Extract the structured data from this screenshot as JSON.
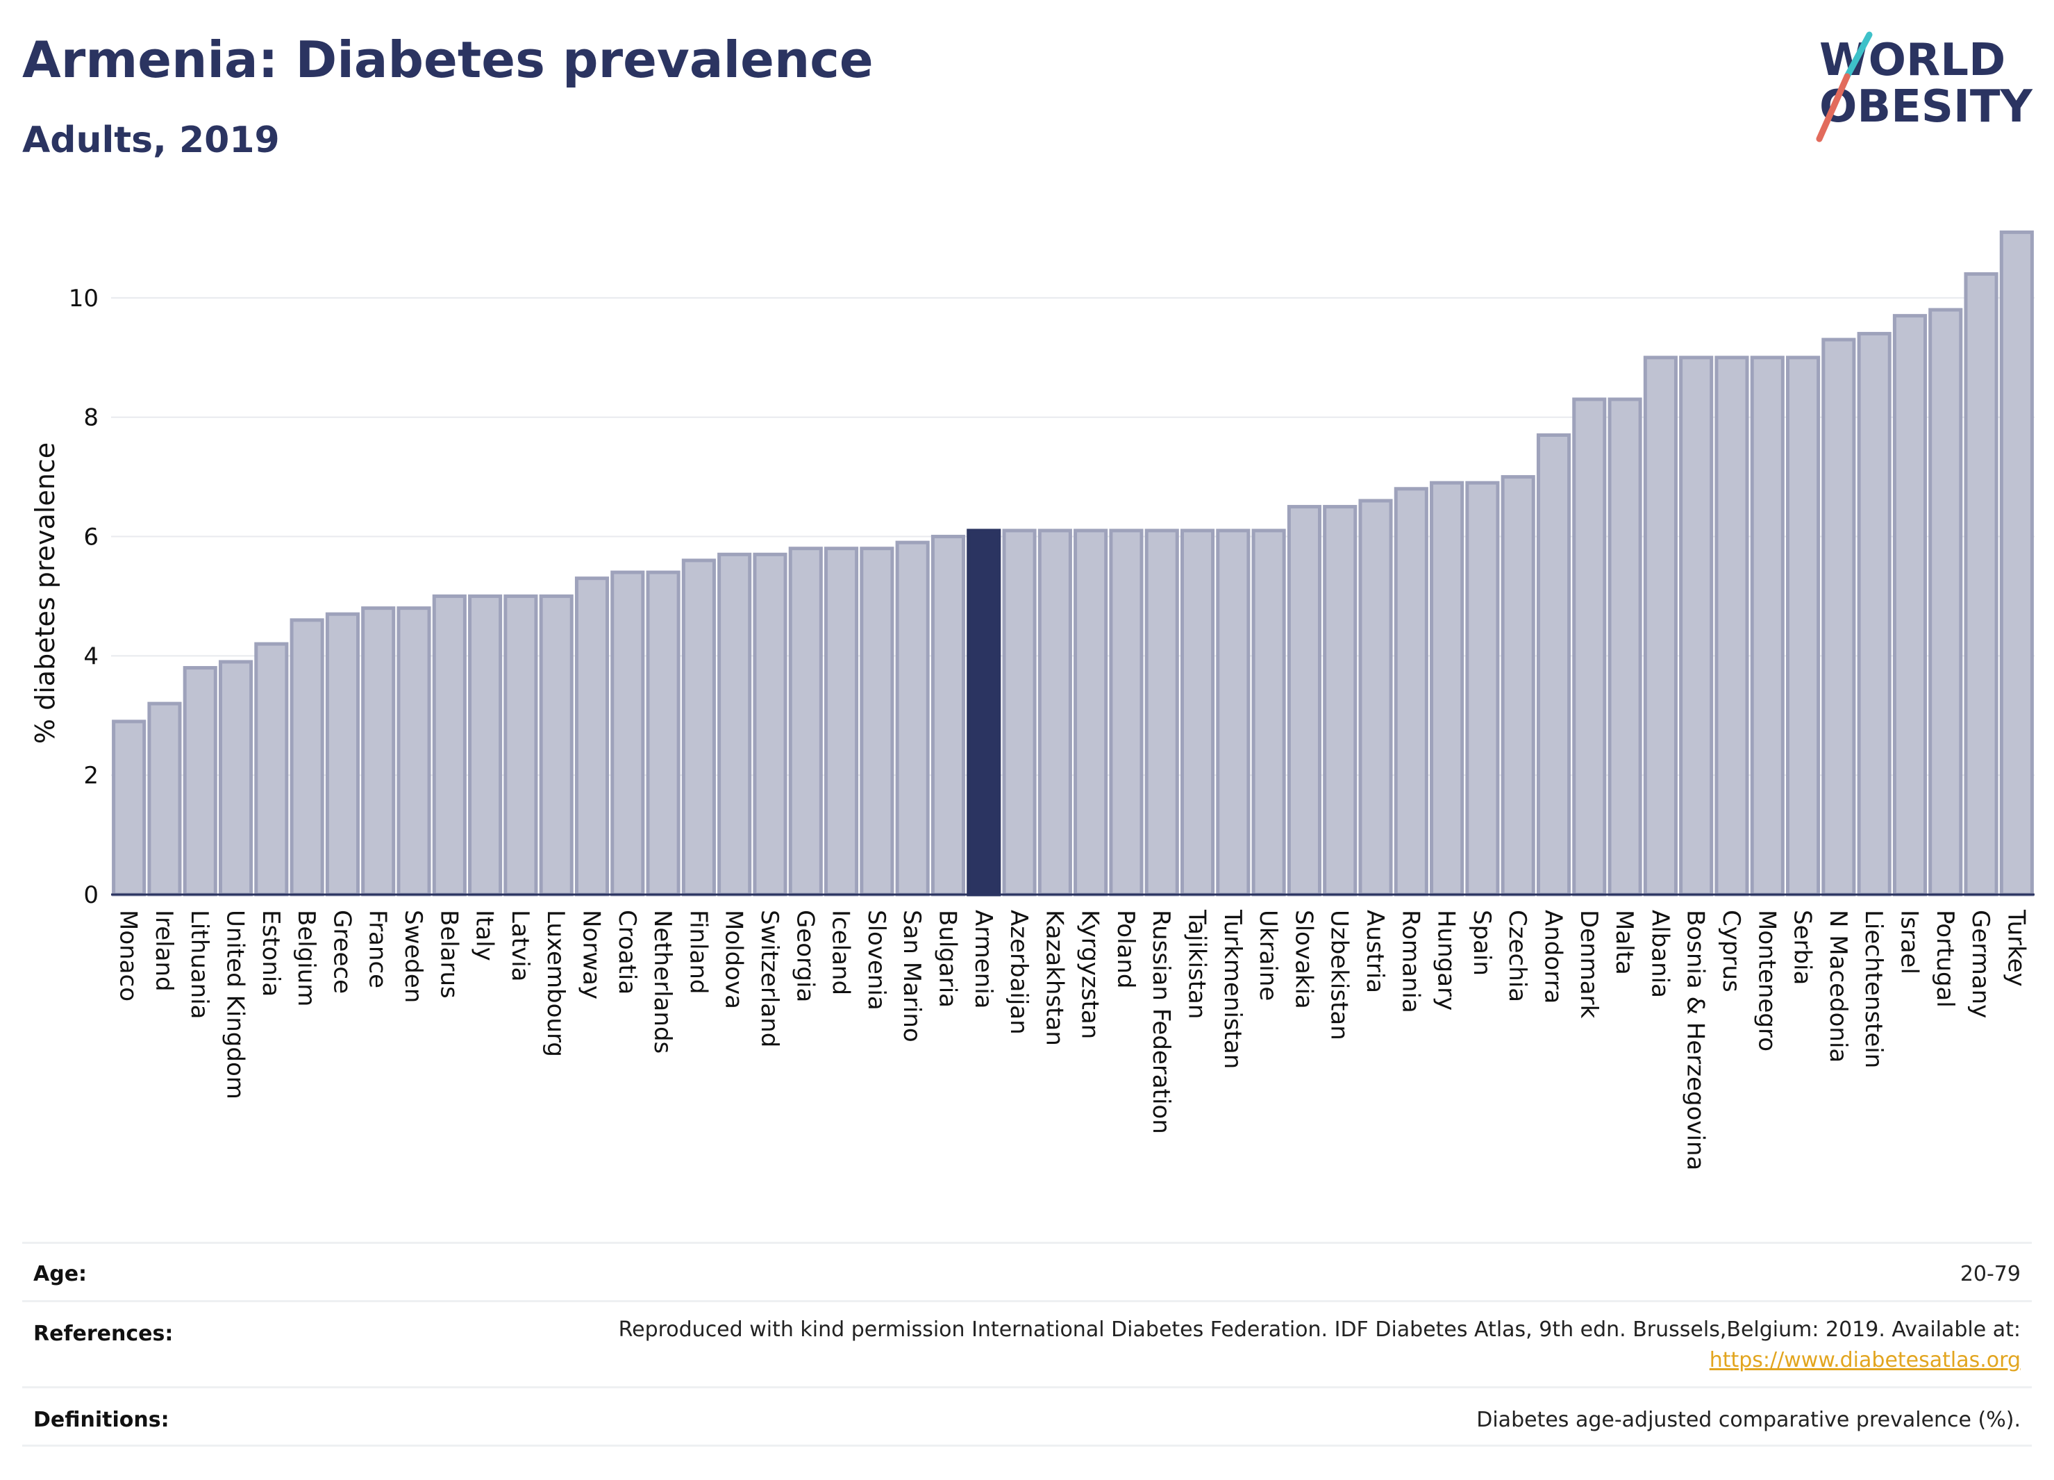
{
  "header": {
    "title": "Armenia: Diabetes prevalence",
    "subtitle": "Adults, 2019"
  },
  "logo": {
    "line1": "WORLD",
    "line2": "OBESITY"
  },
  "chart_data": {
    "type": "bar",
    "ylabel": "% diabetes prevalence",
    "xlabel": "",
    "ylim": [
      0,
      11.5
    ],
    "yticks": [
      0,
      2,
      4,
      6,
      8,
      10
    ],
    "grid": true,
    "highlight": "Armenia",
    "colors": {
      "bar": "#bfc2d2",
      "bar_edge": "#9ea2bb",
      "highlight": "#2b3461"
    },
    "categories": [
      "Monaco",
      "Ireland",
      "Lithuania",
      "United Kingdom",
      "Estonia",
      "Belgium",
      "Greece",
      "France",
      "Sweden",
      "Belarus",
      "Italy",
      "Latvia",
      "Luxembourg",
      "Norway",
      "Croatia",
      "Netherlands",
      "Finland",
      "Moldova",
      "Switzerland",
      "Georgia",
      "Iceland",
      "Slovenia",
      "San Marino",
      "Bulgaria",
      "Armenia",
      "Azerbaijan",
      "Kazakhstan",
      "Kyrgyzstan",
      "Poland",
      "Russian Federation",
      "Tajikistan",
      "Turkmenistan",
      "Ukraine",
      "Slovakia",
      "Uzbekistan",
      "Austria",
      "Romania",
      "Hungary",
      "Spain",
      "Czechia",
      "Andorra",
      "Denmark",
      "Malta",
      "Albania",
      "Bosnia & Herzegovina",
      "Cyprus",
      "Montenegro",
      "Serbia",
      "N Macedonia",
      "Liechtenstein",
      "Israel",
      "Portugal",
      "Germany",
      "Turkey"
    ],
    "values": [
      2.9,
      3.2,
      3.8,
      3.9,
      4.2,
      4.6,
      4.7,
      4.8,
      4.8,
      5.0,
      5.0,
      5.0,
      5.0,
      5.3,
      5.4,
      5.4,
      5.6,
      5.7,
      5.7,
      5.8,
      5.8,
      5.8,
      5.9,
      6.0,
      6.1,
      6.1,
      6.1,
      6.1,
      6.1,
      6.1,
      6.1,
      6.1,
      6.1,
      6.5,
      6.5,
      6.6,
      6.8,
      6.9,
      6.9,
      7.0,
      7.7,
      8.3,
      8.3,
      9.0,
      9.0,
      9.0,
      9.0,
      9.0,
      9.3,
      9.4,
      9.7,
      9.8,
      10.4,
      11.1
    ]
  },
  "info": {
    "age": {
      "label": "Age:",
      "value": "20-79"
    },
    "references": {
      "label": "References:",
      "value": "Reproduced with kind permission International Diabetes Federation. IDF Diabetes Atlas, 9th edn. Brussels,Belgium: 2019. Available at:",
      "link": "https://www.diabetesatlas.org"
    },
    "definitions": {
      "label": "Definitions:",
      "value": "Diabetes age-adjusted comparative prevalence (%)."
    }
  }
}
